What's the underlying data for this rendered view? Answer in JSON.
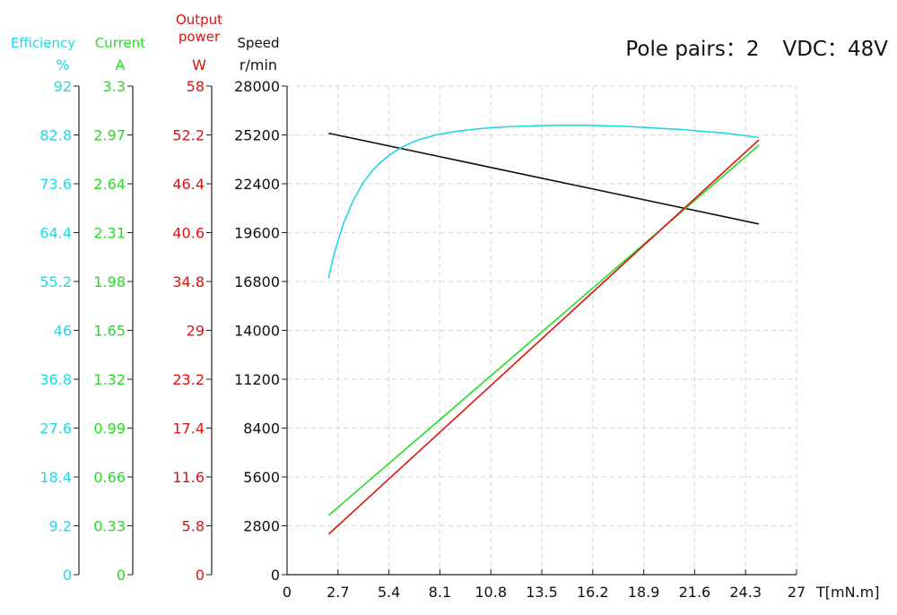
{
  "chart_data": {
    "type": "line",
    "title": "Pole pairs：2    VDC：48V",
    "title_parts": {
      "pole_pairs": "Pole pairs：2",
      "vdc": "VDC：48V"
    },
    "xlabel": "T[mN.m]",
    "xlim": [
      0,
      27
    ],
    "x_ticks": [
      "0",
      "2.7",
      "5.4",
      "8.1",
      "10.8",
      "13.5",
      "16.2",
      "18.9",
      "21.6",
      "24.3",
      "27"
    ],
    "grid": true,
    "axes": [
      {
        "key": "efficiency",
        "label": "Efficiency",
        "unit": "%",
        "color": "#1fd8e6",
        "range": [
          0,
          92
        ],
        "ticks": [
          "0",
          "9.2",
          "18.4",
          "27.6",
          "36.8",
          "46",
          "55.2",
          "64.4",
          "73.6",
          "82.8",
          "92"
        ]
      },
      {
        "key": "current",
        "label": "Current",
        "unit": "A",
        "color": "#22dd22",
        "range": [
          0,
          3.3
        ],
        "ticks": [
          "0",
          "0.33",
          "0.66",
          "0.99",
          "1.32",
          "1.65",
          "1.98",
          "2.31",
          "2.64",
          "2.97",
          "3.3"
        ]
      },
      {
        "key": "power",
        "label": [
          "Output",
          "power"
        ],
        "unit": "W",
        "color": "#e01010",
        "range": [
          0,
          58
        ],
        "ticks": [
          "0",
          "5.8",
          "11.6",
          "17.4",
          "23.2",
          "29",
          "34.8",
          "40.6",
          "46.4",
          "52.2",
          "58"
        ]
      },
      {
        "key": "speed",
        "label": "Speed",
        "unit": "r/min",
        "color": "#111111",
        "range": [
          0,
          28000
        ],
        "ticks": [
          "0",
          "2800",
          "5600",
          "8400",
          "11200",
          "14000",
          "16800",
          "19600",
          "22400",
          "25200",
          "28000"
        ]
      }
    ],
    "series": [
      {
        "axis": "speed",
        "color": "#111111",
        "x": [
          2.2,
          25.0
        ],
        "y": [
          25300,
          20100
        ]
      },
      {
        "axis": "current",
        "color": "#22dd22",
        "x": [
          2.2,
          25.0
        ],
        "y": [
          0.4,
          2.9
        ]
      },
      {
        "axis": "power",
        "color": "#e01010",
        "x": [
          2.2,
          25.0
        ],
        "y": [
          4.8,
          51.6
        ]
      },
      {
        "axis": "efficiency",
        "color": "#1fd8e6",
        "x": [
          2.2,
          2.5,
          3.0,
          3.5,
          4.0,
          4.5,
          5.0,
          5.5,
          6.0,
          6.5,
          7.0,
          8.0,
          9.0,
          10.0,
          11.0,
          12.0,
          13.0,
          14.0,
          15.0,
          16.0,
          17.0,
          18.0,
          19.0,
          20.0,
          21.0,
          22.0,
          23.0,
          24.0,
          25.0
        ],
        "y": [
          55.8,
          60.5,
          66.2,
          70.4,
          73.6,
          76.0,
          77.8,
          79.2,
          80.3,
          81.2,
          81.9,
          82.9,
          83.5,
          83.9,
          84.2,
          84.4,
          84.5,
          84.6,
          84.6,
          84.6,
          84.5,
          84.4,
          84.2,
          84.0,
          83.8,
          83.5,
          83.2,
          82.8,
          82.3
        ]
      }
    ]
  }
}
